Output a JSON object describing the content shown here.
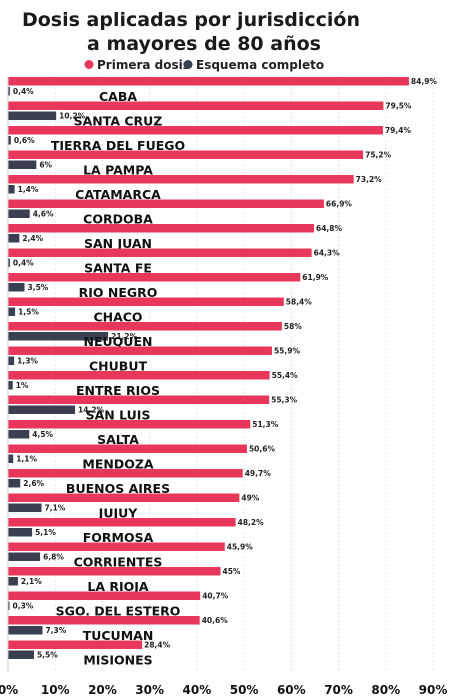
{
  "chart_data": {
    "type": "bar",
    "orientation": "horizontal",
    "title_lines": [
      "Dosis aplicadas por jurisdicción",
      "a mayores de 80 años"
    ],
    "legend_position": "top",
    "xlim": [
      0,
      90
    ],
    "xticks": [
      "0%",
      "10%",
      "20%",
      "30%",
      "40%",
      "50%",
      "60%",
      "70%",
      "80%",
      "90%"
    ],
    "categories": [
      "CABA",
      "SANTA CRUZ",
      "TIERRA DEL FUEGO",
      "LA PAMPA",
      "CATAMARCA",
      "CORDOBA",
      "SAN JUAN",
      "SANTA FE",
      "RIO NEGRO",
      "CHACO",
      "NEUQUEN",
      "CHUBUT",
      "ENTRE RIOS",
      "SAN LUIS",
      "SALTA",
      "MENDOZA",
      "BUENOS AIRES",
      "JUJUY",
      "FORMOSA",
      "CORRIENTES",
      "LA RIOJA",
      "SGO. DEL ESTERO",
      "TUCUMAN",
      "MISIONES"
    ],
    "series": [
      {
        "name": "Primera dosis",
        "color": "#e8375a",
        "values": [
          84.9,
          79.5,
          79.4,
          75.2,
          73.2,
          66.9,
          64.8,
          64.3,
          61.9,
          58.4,
          58,
          55.9,
          55.4,
          55.3,
          51.3,
          50.6,
          49.7,
          49,
          48.2,
          45.9,
          45,
          40.7,
          40.6,
          28.4
        ],
        "labels": [
          "84,9%",
          "79,5%",
          "79,4%",
          "75,2%",
          "73,2%",
          "66,9%",
          "64,8%",
          "64,3%",
          "61,9%",
          "58,4%",
          "58%",
          "55,9%",
          "55,4%",
          "55,3%",
          "51,3%",
          "50,6%",
          "49,7%",
          "49%",
          "48,2%",
          "45,9%",
          "45%",
          "40,7%",
          "40,6%",
          "28,4%"
        ]
      },
      {
        "name": "Esquema completo",
        "color": "#3a3f52",
        "values": [
          0.4,
          10.2,
          0.6,
          6,
          1.4,
          4.6,
          2.4,
          0.4,
          3.5,
          1.5,
          21.2,
          1.3,
          1,
          14.2,
          4.5,
          1.1,
          2.6,
          7.1,
          5.1,
          6.8,
          2.1,
          0.3,
          7.3,
          5.5
        ],
        "labels": [
          "0,4%",
          "10,2%",
          "0,6%",
          "6%",
          "1,4%",
          "4,6%",
          "2,4%",
          "0,4%",
          "3,5%",
          "1,5%",
          "21,2%",
          "1,3%",
          "1%",
          "14,2%",
          "4,5%",
          "1,1%",
          "2,6%",
          "7,1%",
          "5,1%",
          "6,8%",
          "2,1%",
          "0,3%",
          "7,3%",
          "5,5%"
        ]
      }
    ]
  }
}
